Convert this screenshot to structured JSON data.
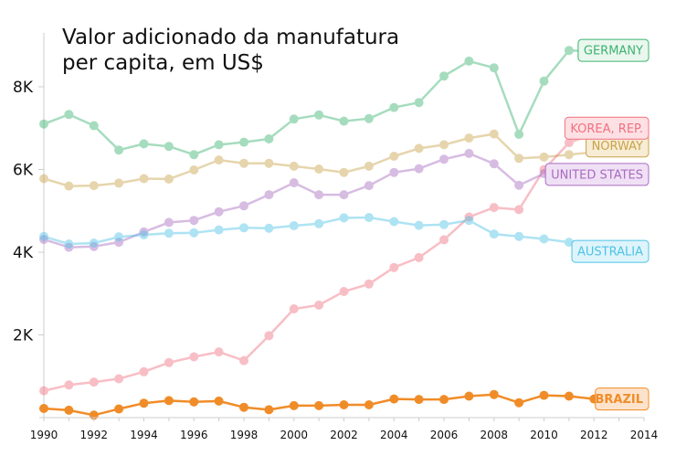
{
  "chart_data": {
    "type": "line",
    "title_line1": "Valor adicionado da manufatura",
    "title_line2": "per capita, em US$",
    "x": [
      1990,
      1991,
      1992,
      1993,
      1994,
      1995,
      1996,
      1997,
      1998,
      1999,
      2000,
      2001,
      2002,
      2003,
      2004,
      2005,
      2006,
      2007,
      2008,
      2009,
      2010,
      2011,
      2012,
      2013,
      2014
    ],
    "xticks": [
      "1990",
      "1992",
      "1994",
      "1996",
      "1998",
      "2000",
      "2002",
      "2004",
      "2006",
      "2008",
      "2010",
      "2012",
      "2014"
    ],
    "xlim": [
      1990,
      2014
    ],
    "ylim": [
      0,
      9000
    ],
    "yticks": [
      {
        "value": 2000,
        "label": "2K"
      },
      {
        "value": 4000,
        "label": "4K"
      },
      {
        "value": 6000,
        "label": "6K"
      },
      {
        "value": 8000,
        "label": "8K"
      }
    ],
    "series": [
      {
        "name": "GERMANY",
        "color": "#3cb371",
        "fill": "#eaf7ee",
        "opacity": 0.45,
        "values": [
          7100,
          7330,
          7060,
          6470,
          6620,
          6560,
          6360,
          6600,
          6660,
          6740,
          7220,
          7320,
          7170,
          7230,
          7500,
          7620,
          8260,
          8620,
          8460,
          6850,
          8140,
          8880,
          8860,
          8880,
          null
        ]
      },
      {
        "name": "NORWAY",
        "color": "#c9a34a",
        "fill": "#f7ecd4",
        "opacity": 0.45,
        "values": [
          5780,
          5600,
          5610,
          5670,
          5780,
          5770,
          5990,
          6230,
          6150,
          6150,
          6080,
          6010,
          5930,
          6080,
          6320,
          6510,
          6600,
          6760,
          6860,
          6270,
          6300,
          6360,
          6420,
          6570,
          null
        ]
      },
      {
        "name": "KOREA, REP.",
        "color": "#f07080",
        "fill": "#fde0e3",
        "opacity": 0.45,
        "values": [
          650,
          790,
          860,
          940,
          1110,
          1330,
          1470,
          1590,
          1380,
          1980,
          2630,
          2720,
          3050,
          3230,
          3630,
          3870,
          4300,
          4850,
          5080,
          5030,
          6000,
          6650,
          6860,
          7000,
          null
        ]
      },
      {
        "name": "UNITED STATES",
        "color": "#a86cc0",
        "fill": "#f0e0f5",
        "opacity": 0.45,
        "values": [
          4310,
          4120,
          4140,
          4240,
          4490,
          4720,
          4770,
          4980,
          5120,
          5390,
          5680,
          5390,
          5390,
          5610,
          5930,
          6020,
          6250,
          6390,
          6140,
          5620,
          5900,
          5840,
          5830,
          5880,
          null
        ]
      },
      {
        "name": "AUSTRALIA",
        "color": "#4ec3e6",
        "fill": "#def4fb",
        "opacity": 0.45,
        "values": [
          4380,
          4200,
          4220,
          4370,
          4420,
          4460,
          4470,
          4540,
          4590,
          4580,
          4640,
          4690,
          4830,
          4840,
          4740,
          4650,
          4670,
          4770,
          4440,
          4380,
          4320,
          4240,
          4050,
          4020,
          null
        ]
      },
      {
        "name": "BRAZIL",
        "color": "#f08c28",
        "fill": "#fde3cb",
        "opacity": 1.0,
        "values": [
          220,
          180,
          60,
          210,
          350,
          410,
          380,
          400,
          250,
          190,
          290,
          290,
          310,
          310,
          450,
          440,
          440,
          520,
          560,
          360,
          540,
          520,
          450,
          450,
          null
        ]
      }
    ]
  }
}
